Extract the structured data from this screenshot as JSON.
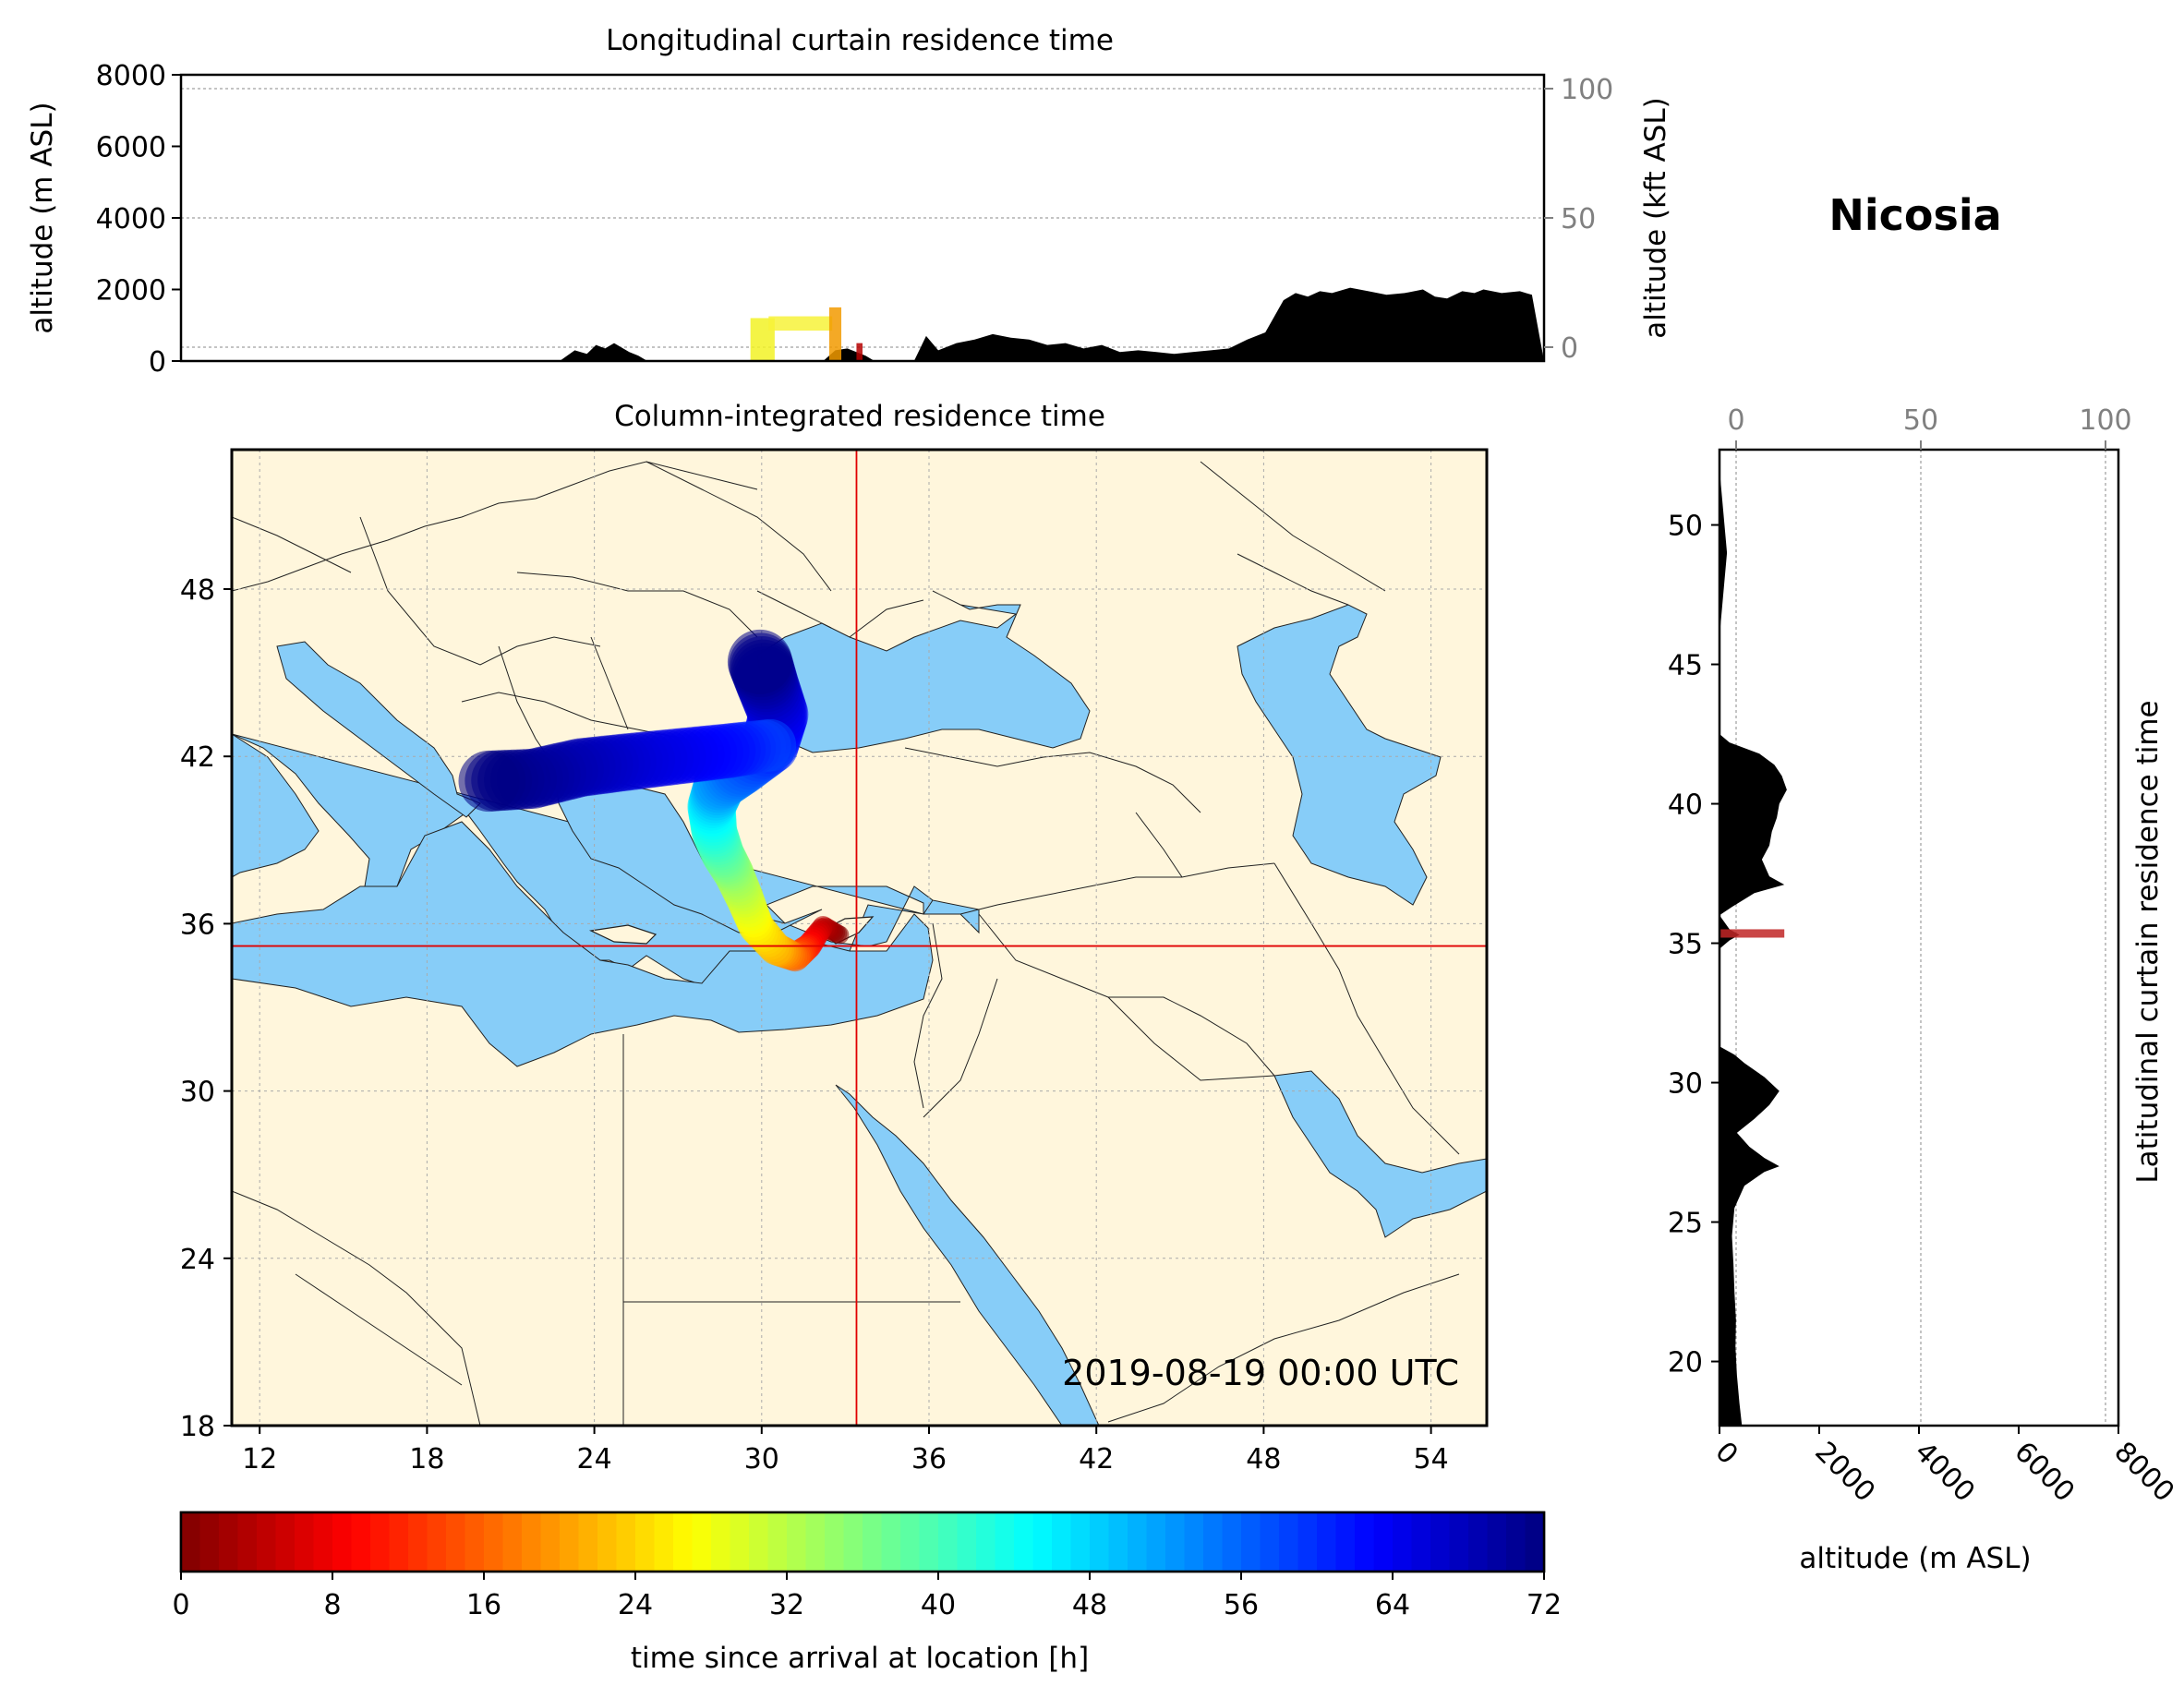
{
  "location_name": "Nicosia",
  "timestamp": "2019-08-19 00:00 UTC",
  "chart_data": [
    {
      "type": "area",
      "title": "Longitudinal curtain residence time",
      "ylabel": "altitude (m ASL)",
      "ylabel_right": "altitude (kft ASL)",
      "ylim": [
        0,
        8000
      ],
      "yticks": [
        0,
        2000,
        4000,
        6000,
        8000
      ],
      "ylim_right": [
        0,
        100
      ],
      "yticks_right": [
        0,
        50,
        100
      ],
      "xlim": [
        11,
        56
      ],
      "terrain": {
        "x": [
          23.5,
          24.0,
          24.4,
          24.7,
          25.0,
          25.3,
          25.8,
          26.1,
          26.4,
          32.2,
          32.6,
          33.0,
          33.6,
          33.9,
          34.4,
          34.9,
          35.2,
          35.6,
          36.0,
          36.6,
          37.2,
          37.8,
          38.4,
          39.0,
          39.6,
          40.2,
          40.8,
          41.4,
          42.0,
          42.6,
          43.2,
          43.8,
          44.4,
          45.0,
          45.6,
          46.2,
          46.8,
          47.4,
          47.8,
          48.2,
          48.6,
          49.0,
          49.6,
          50.2,
          50.8,
          51.4,
          52.0,
          52.4,
          52.8,
          53.3,
          53.7,
          54.0,
          54.6,
          55.2,
          55.6,
          56.0
        ],
        "y": [
          0,
          300,
          200,
          450,
          350,
          500,
          250,
          150,
          0,
          0,
          300,
          350,
          150,
          0,
          0,
          0,
          0,
          700,
          300,
          500,
          600,
          750,
          650,
          600,
          450,
          500,
          350,
          450,
          250,
          300,
          250,
          200,
          250,
          300,
          350,
          600,
          800,
          1700,
          1900,
          1800,
          1950,
          1900,
          2050,
          1950,
          1850,
          1900,
          2000,
          1800,
          1750,
          1950,
          1900,
          2000,
          1900,
          1950,
          1850,
          0
        ]
      },
      "plumes": [
        {
          "x_range": [
            29.8,
            30.6
          ],
          "alt_range": [
            0,
            1200
          ],
          "color": "#f2f226"
        },
        {
          "x_range": [
            30.4,
            32.5
          ],
          "alt_range": [
            850,
            1250
          ],
          "color": "#f7f23a"
        },
        {
          "x_range": [
            32.4,
            32.8
          ],
          "alt_range": [
            0,
            1500
          ],
          "color": "#f29a00"
        },
        {
          "x_range": [
            33.3,
            33.5
          ],
          "alt_range": [
            0,
            500
          ],
          "color": "#b50000"
        }
      ]
    },
    {
      "type": "heatmap",
      "title": "Column-integrated residence time",
      "xlim": [
        11,
        56
      ],
      "ylim": [
        18,
        53
      ],
      "xticks": [
        12,
        18,
        24,
        30,
        36,
        42,
        48,
        54
      ],
      "yticks": [
        18,
        24,
        30,
        36,
        42,
        48
      ],
      "receptor": {
        "lon": 33.4,
        "lat": 35.2
      },
      "trajectory": {
        "lon": [
          32.8,
          32.2,
          31.7,
          31.2,
          30.5,
          29.8,
          29.4,
          29.0,
          28.6,
          28.3,
          28.2,
          28.5,
          29.3,
          30.3,
          30.6,
          30.2,
          29.9
        ],
        "lat": [
          35.6,
          35.9,
          35.2,
          34.8,
          35.1,
          35.9,
          36.9,
          37.8,
          38.5,
          39.3,
          40.2,
          41.0,
          41.6,
          42.4,
          43.5,
          44.6,
          45.5
        ],
        "hours": [
          0,
          4,
          10,
          16,
          22,
          26,
          30,
          34,
          38,
          42,
          46,
          52,
          56,
          60,
          64,
          68,
          72
        ]
      },
      "westward_branch": {
        "lon": [
          30.3,
          28.8,
          27.0,
          25.2,
          23.5,
          21.8,
          20.0
        ],
        "lat": [
          42.4,
          42.2,
          42.0,
          41.8,
          41.6,
          41.2,
          41.1
        ],
        "hours": [
          58,
          62,
          64,
          66,
          68,
          70,
          72
        ]
      }
    },
    {
      "type": "area",
      "title": "Latitudinal curtain residence time",
      "xlabel": "altitude (m ASL)",
      "xlim": [
        0,
        8000
      ],
      "xticks": [
        0,
        2000,
        4000,
        6000,
        8000
      ],
      "xlim_top": [
        0,
        100
      ],
      "xticks_top": [
        0,
        50,
        100
      ],
      "ylim": [
        17.7,
        52.7
      ],
      "yticks": [
        20,
        25,
        30,
        35,
        40,
        45,
        50
      ],
      "terrain": {
        "lat": [
          17.7,
          18.5,
          19.5,
          20.5,
          21.5,
          22.5,
          23.5,
          24.5,
          25.5,
          26.3,
          26.8,
          27.0,
          27.3,
          27.7,
          28.2,
          28.7,
          29.2,
          29.7,
          30.2,
          30.7,
          31.0,
          31.3,
          34.8,
          35.1,
          35.3,
          35.5,
          36.0,
          36.3,
          36.8,
          37.1,
          37.4,
          38.0,
          38.5,
          39.0,
          39.5,
          40.0,
          40.5,
          41.0,
          41.4,
          41.8,
          42.2,
          42.5,
          43.0,
          44.0,
          45.0,
          46.0,
          47.0,
          48.0,
          49.0,
          50.0,
          51.0,
          52.0,
          52.7
        ],
        "alt": [
          450,
          400,
          350,
          320,
          330,
          300,
          280,
          250,
          300,
          500,
          900,
          1200,
          900,
          600,
          350,
          700,
          1000,
          1200,
          900,
          500,
          300,
          0,
          0,
          200,
          400,
          200,
          0,
          250,
          700,
          1300,
          1000,
          850,
          1000,
          1050,
          1150,
          1200,
          1350,
          1250,
          1100,
          800,
          200,
          0,
          0,
          0,
          0,
          0,
          50,
          100,
          150,
          100,
          50,
          0,
          0
        ]
      },
      "plumes": [
        {
          "lat_range": [
            35.2,
            35.5
          ],
          "alt_range": [
            0,
            1300
          ],
          "color": "#c12626"
        }
      ]
    },
    {
      "type": "bar",
      "role": "colorbar",
      "xlabel": "time since arrival at location [h]",
      "xlim": [
        0,
        72
      ],
      "xticks": [
        0,
        8,
        16,
        24,
        32,
        40,
        48,
        56,
        64,
        72
      ],
      "colormap": "jet_r"
    }
  ]
}
